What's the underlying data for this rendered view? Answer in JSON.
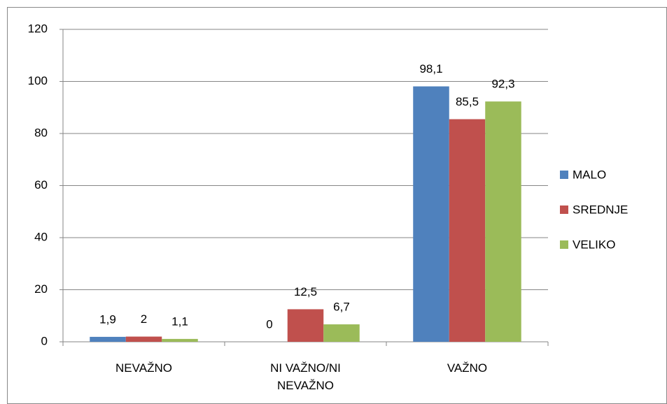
{
  "chart_data": {
    "type": "bar",
    "categories": [
      "NEVAŽNO",
      "NI VAŽNO/NI NEVAŽNO",
      "VAŽNO"
    ],
    "series": [
      {
        "name": "MALO",
        "color": "#4f81bd",
        "values": [
          1.9,
          0,
          98.1
        ],
        "value_labels": [
          "1,9",
          "0",
          "98,1"
        ]
      },
      {
        "name": "SREDNJE",
        "color": "#c0504d",
        "values": [
          2,
          12.5,
          85.5
        ],
        "value_labels": [
          "2",
          "12,5",
          "85,5"
        ]
      },
      {
        "name": "VELIKO",
        "color": "#9bbb59",
        "values": [
          1.1,
          6.7,
          92.3
        ],
        "value_labels": [
          "1,1",
          "6,7",
          "92,3"
        ]
      }
    ],
    "ylim": [
      0,
      120
    ],
    "yticks": [
      0,
      20,
      40,
      60,
      80,
      100,
      120
    ],
    "grid": true,
    "legend": "right"
  }
}
